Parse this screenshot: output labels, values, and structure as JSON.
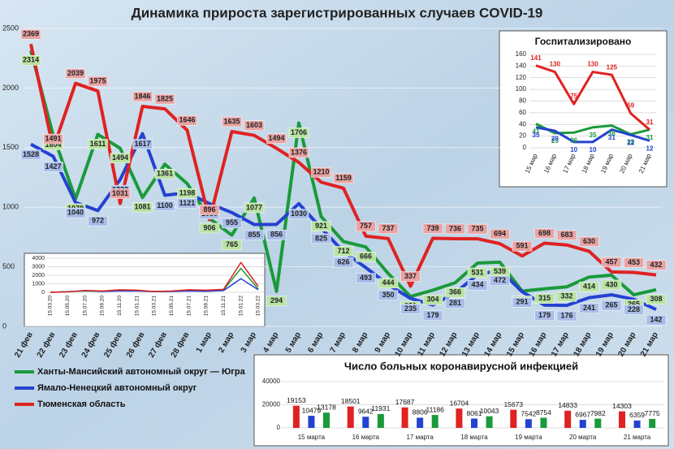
{
  "chart_data": [
    {
      "type": "line",
      "title": "Динамика прироста зарегистрированных случаев COVID-19",
      "categories": [
        "21 фев",
        "22 фев",
        "23 фев",
        "24 фев",
        "25 фев",
        "26 фев",
        "27 фев",
        "28 фев",
        "1 мар",
        "2 мар",
        "3 мар",
        "4 мар",
        "5 мар",
        "6 мар",
        "7 мар",
        "8 мар",
        "9 мар",
        "10 мар",
        "11 мар",
        "12 мар",
        "13 мар",
        "14 мар",
        "15 мар",
        "16 мар",
        "17 мар",
        "18 мар",
        "19 мар",
        "20 мар",
        "21 мар"
      ],
      "series": [
        {
          "name": "Ханты-Мансийский автономный округ — Югра",
          "color": "#1a9a3a",
          "label_color": "#b9e3a3",
          "values": [
            2314,
            1604,
            1070,
            1611,
            1494,
            1081,
            1361,
            1198,
            906,
            765,
            1077,
            294,
            1706,
            921,
            712,
            666,
            444,
            251,
            304,
            366,
            531,
            539,
            296,
            315,
            332,
            414,
            430,
            265,
            308
          ]
        },
        {
          "name": "Ямало-Ненецкий автономный округ",
          "color": "#2442d0",
          "label_color": "#a9bde9",
          "values": [
            1528,
            1427,
            1040,
            972,
            1232,
            1617,
            1100,
            1121,
            1030,
            955,
            855,
            856,
            1030,
            825,
            626,
            493,
            350,
            235,
            179,
            281,
            434,
            472,
            291,
            179,
            176,
            241,
            265,
            228,
            142
          ]
        },
        {
          "name": "Тюменская область",
          "color": "#e02222",
          "label_color": "#eaa3a3",
          "values": [
            2369,
            1491,
            2039,
            1975,
            1031,
            1846,
            1825,
            1646,
            896,
            1635,
            1603,
            1494,
            1376,
            1210,
            1159,
            757,
            737,
            337,
            739,
            736,
            735,
            694,
            591,
            698,
            683,
            630,
            457,
            453,
            432
          ]
        }
      ],
      "ylim": [
        0,
        2500
      ],
      "yticks": [
        0,
        500,
        1000,
        1500,
        2000,
        2500
      ],
      "grid": true
    },
    {
      "type": "line",
      "title": "Госпитализировано",
      "categories": [
        "15 мар",
        "16 мар",
        "17 мар",
        "18 мар",
        "19 мар",
        "20 мар",
        "21 мар"
      ],
      "series": [
        {
          "color": "#1a9a3a",
          "values": [
            41,
            25,
            26,
            35,
            38,
            23,
            31
          ]
        },
        {
          "color": "#2442d0",
          "values": [
            35,
            29,
            10,
            10,
            31,
            22,
            12
          ]
        },
        {
          "color": "#e02222",
          "values": [
            141,
            130,
            75,
            130,
            125,
            59,
            31
          ]
        }
      ],
      "ylim": [
        0,
        160
      ],
      "yticks": [
        0,
        20,
        40,
        60,
        80,
        100,
        120,
        140,
        160
      ],
      "grid": true
    },
    {
      "type": "line",
      "categories": [
        "15.03.20",
        "15.05.20",
        "15.07.20",
        "15.09.20",
        "15.11.20",
        "15.01.21",
        "15.03.21",
        "15.05.21",
        "15.07.21",
        "15.09.21",
        "15.11.21",
        "15.01.22",
        "15.03.22"
      ],
      "series": [
        {
          "color": "#1a9a3a",
          "values": [
            0,
            80,
            150,
            120,
            250,
            200,
            100,
            120,
            250,
            200,
            280,
            2800,
            400
          ]
        },
        {
          "color": "#2442d0",
          "values": [
            0,
            60,
            200,
            100,
            150,
            150,
            80,
            90,
            150,
            120,
            200,
            1600,
            300
          ]
        },
        {
          "color": "#e02222",
          "values": [
            0,
            50,
            220,
            150,
            300,
            250,
            100,
            150,
            300,
            250,
            350,
            3500,
            700
          ]
        }
      ],
      "ylim": [
        0,
        4000
      ],
      "yticks": [
        0,
        1000,
        2000,
        3000,
        4000
      ],
      "grid": true
    },
    {
      "type": "bar",
      "title": "Число больных коронавирусной  инфекцией",
      "categories": [
        "15 марта",
        "16 марта",
        "17 марта",
        "18 марта",
        "19 марта",
        "20 марта",
        "21 марта"
      ],
      "series": [
        {
          "color": "#e02222",
          "values": [
            19153,
            18501,
            17687,
            16704,
            15673,
            14833,
            14303
          ]
        },
        {
          "color": "#2442d0",
          "values": [
            10479,
            9642,
            8806,
            8061,
            7542,
            6967,
            6359
          ]
        },
        {
          "color": "#1a9a3a",
          "values": [
            13178,
            11931,
            11186,
            10043,
            8754,
            7982,
            7775
          ]
        }
      ],
      "ylim": [
        0,
        40000
      ],
      "yticks": [
        0,
        20000,
        40000
      ],
      "grid": true
    }
  ]
}
